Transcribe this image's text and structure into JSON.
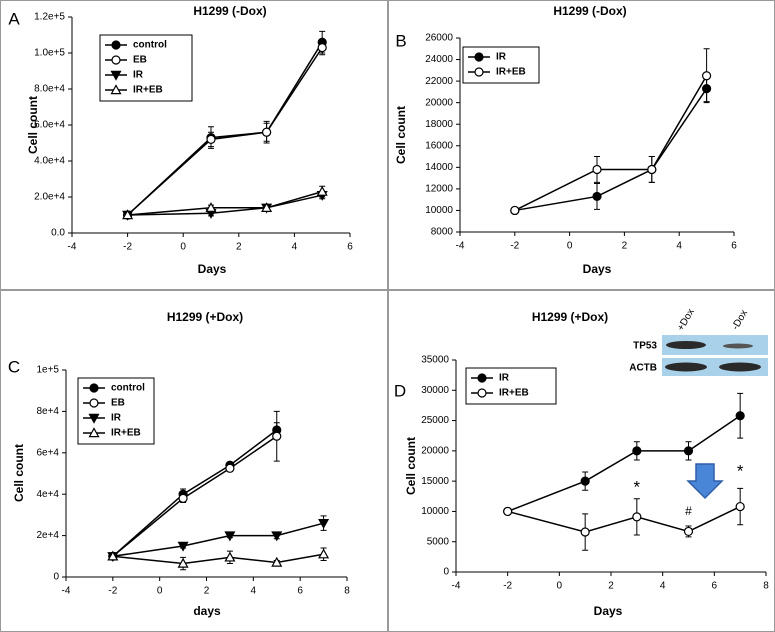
{
  "chart_data": [
    {
      "type": "line",
      "panel_label": "A",
      "title": "H1299 (-Dox)",
      "x_label": "Days",
      "y_label": "Cell count",
      "xlim": [
        -4,
        6
      ],
      "xticks": [
        -4,
        -2,
        0,
        2,
        4,
        6
      ],
      "ylim": [
        0,
        120000
      ],
      "yticks": [
        {
          "value": 0,
          "label": "0.0"
        },
        {
          "value": 20000,
          "label": "2.0e+4"
        },
        {
          "value": 40000,
          "label": "4.0e+4"
        },
        {
          "value": 60000,
          "label": "6.0e+4"
        },
        {
          "value": 80000,
          "label": "8.0e+4"
        },
        {
          "value": 100000,
          "label": "1.0e+5"
        },
        {
          "value": 120000,
          "label": "1.2e+5"
        }
      ],
      "legend": "top-left",
      "series": [
        {
          "name": "control",
          "color": "#000000",
          "marker": "circle",
          "filled": true,
          "x": [
            -2,
            1,
            3,
            5
          ],
          "values": [
            10000,
            53000,
            56000,
            106000
          ],
          "errors": [
            0,
            6000,
            5000,
            6000
          ]
        },
        {
          "name": "EB",
          "color": "#000000",
          "marker": "circle",
          "filled": false,
          "x": [
            -2,
            1,
            3,
            5
          ],
          "values": [
            10000,
            52000,
            56000,
            103000
          ],
          "errors": [
            0,
            4000,
            6000,
            4000
          ]
        },
        {
          "name": "IR",
          "color": "#000000",
          "marker": "triangle-down",
          "filled": true,
          "x": [
            -2,
            1,
            3,
            5
          ],
          "values": [
            10000,
            11000,
            14000,
            21000
          ],
          "errors": [
            0,
            1500,
            1500,
            2000
          ]
        },
        {
          "name": "IR+EB",
          "color": "#000000",
          "marker": "triangle-up",
          "filled": false,
          "x": [
            -2,
            1,
            3,
            5
          ],
          "values": [
            10000,
            14000,
            14000,
            23000
          ],
          "errors": [
            0,
            1500,
            1500,
            3000
          ]
        }
      ]
    },
    {
      "type": "line",
      "panel_label": "B",
      "title": "H1299 (-Dox)",
      "x_label": "Days",
      "y_label": "Cell count",
      "xlim": [
        -4,
        6
      ],
      "xticks": [
        -4,
        -2,
        0,
        2,
        4,
        6
      ],
      "ylim": [
        8000,
        26000
      ],
      "yticks": [
        8000,
        10000,
        12000,
        14000,
        16000,
        18000,
        20000,
        22000,
        24000,
        26000
      ],
      "legend": "top-left",
      "series": [
        {
          "name": "IR",
          "color": "#000000",
          "marker": "circle",
          "filled": true,
          "x": [
            -2,
            1,
            3,
            5
          ],
          "values": [
            10000,
            11300,
            13800,
            21300
          ],
          "errors": [
            0,
            1200,
            1200,
            1200
          ]
        },
        {
          "name": "IR+EB",
          "color": "#000000",
          "marker": "circle",
          "filled": false,
          "x": [
            -2,
            1,
            3,
            5
          ],
          "values": [
            10000,
            13800,
            13800,
            22500
          ],
          "errors": [
            0,
            1200,
            1200,
            2500
          ]
        }
      ]
    },
    {
      "type": "line",
      "panel_label": "C",
      "title": "H1299 (+Dox)",
      "x_label": "days",
      "y_label": "Cell count",
      "xlim": [
        -4,
        8
      ],
      "xticks": [
        -4,
        -2,
        0,
        2,
        4,
        6,
        8
      ],
      "ylim": [
        0,
        100000
      ],
      "yticks": [
        0,
        {
          "value": 20000,
          "label": "2e+4"
        },
        {
          "value": 40000,
          "label": "4e+4"
        },
        {
          "value": 60000,
          "label": "6e+4"
        },
        {
          "value": 80000,
          "label": "8e+4"
        },
        {
          "value": 100000,
          "label": "1e+5"
        }
      ],
      "legend": "top-left",
      "series": [
        {
          "name": "control",
          "color": "#000000",
          "marker": "circle",
          "filled": true,
          "x": [
            -2,
            1,
            3,
            5
          ],
          "values": [
            10000,
            40000,
            54000,
            71000
          ],
          "errors": [
            0,
            2500,
            1500,
            3500
          ]
        },
        {
          "name": "EB",
          "color": "#000000",
          "marker": "circle",
          "filled": false,
          "x": [
            -2,
            1,
            3,
            5
          ],
          "values": [
            10000,
            38000,
            52500,
            68000
          ],
          "errors": [
            0,
            2000,
            1000,
            12000
          ]
        },
        {
          "name": "IR",
          "color": "#000000",
          "marker": "triangle-down",
          "filled": true,
          "x": [
            -2,
            1,
            3,
            5,
            7
          ],
          "values": [
            10000,
            15000,
            20000,
            20000,
            26000
          ],
          "errors": [
            0,
            1000,
            1000,
            1500,
            3500
          ]
        },
        {
          "name": "IR+EB",
          "color": "#000000",
          "marker": "triangle-up",
          "filled": false,
          "x": [
            -2,
            1,
            3,
            5,
            7
          ],
          "values": [
            10000,
            6500,
            9500,
            7000,
            11000
          ],
          "errors": [
            0,
            3000,
            3000,
            1000,
            3000
          ]
        }
      ]
    },
    {
      "type": "line",
      "panel_label": "D",
      "title": "H1299 (+Dox)",
      "x_label": "Days",
      "y_label": "Cell count",
      "xlim": [
        -4,
        8
      ],
      "xticks": [
        -4,
        -2,
        0,
        2,
        4,
        6,
        8
      ],
      "ylim": [
        0,
        35000
      ],
      "yticks": [
        0,
        5000,
        10000,
        15000,
        20000,
        25000,
        30000,
        35000
      ],
      "legend": "top-left",
      "series": [
        {
          "name": "IR",
          "color": "#000000",
          "marker": "circle",
          "filled": true,
          "x": [
            -2,
            1,
            3,
            5,
            7
          ],
          "values": [
            10000,
            15000,
            20000,
            20000,
            25800
          ],
          "errors": [
            0,
            1500,
            1500,
            1500,
            3700
          ]
        },
        {
          "name": "IR+EB",
          "color": "#000000",
          "marker": "circle",
          "filled": false,
          "x": [
            -2,
            1,
            3,
            5,
            7
          ],
          "values": [
            10000,
            6600,
            9100,
            6700,
            10800
          ],
          "errors": [
            0,
            3000,
            3000,
            900,
            3000
          ]
        }
      ],
      "annotations": [
        "*",
        "#",
        "*"
      ],
      "inset_columns": [
        "+Dox",
        "-Dox"
      ],
      "inset_rows": [
        "TP53",
        "ACTB"
      ]
    }
  ]
}
